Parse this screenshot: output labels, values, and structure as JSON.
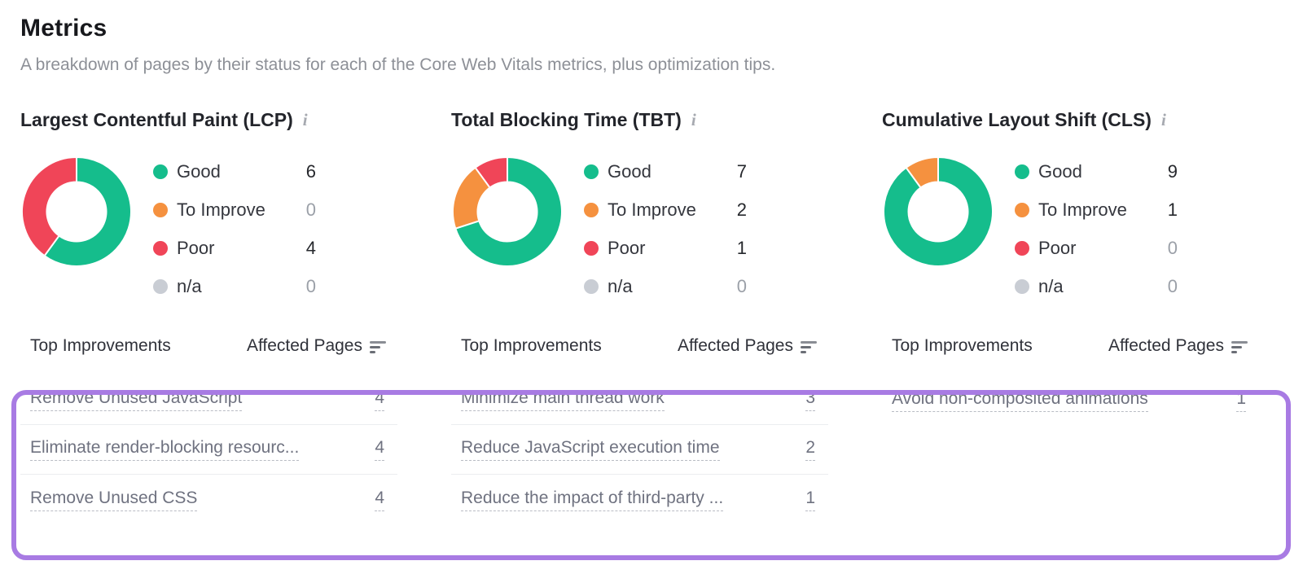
{
  "page": {
    "title": "Metrics",
    "subtitle": "A breakdown of pages by their status for each of the Core Web Vitals metrics, plus optimization tips."
  },
  "icons": {
    "info": "i"
  },
  "colors": {
    "good": "#15bd8c",
    "to_improve": "#f5913f",
    "poor": "#f04558",
    "na": "#c9cdd4",
    "highlight": "#a87be3"
  },
  "table_header": {
    "improvements": "Top Improvements",
    "affected_pages": "Affected Pages"
  },
  "metrics": [
    {
      "title": "Largest Contentful Paint (LCP)",
      "legend": [
        {
          "label": "Good",
          "value": "6",
          "color_key": "good"
        },
        {
          "label": "To Improve",
          "value": "0",
          "color_key": "to_improve"
        },
        {
          "label": "Poor",
          "value": "4",
          "color_key": "poor"
        },
        {
          "label": "n/a",
          "value": "0",
          "color_key": "na"
        }
      ],
      "improvements": [
        {
          "label": "Remove Unused JavaScript",
          "pages": "4"
        },
        {
          "label": "Eliminate render-blocking resourc...",
          "pages": "4"
        },
        {
          "label": "Remove Unused CSS",
          "pages": "4"
        }
      ]
    },
    {
      "title": "Total Blocking Time (TBT)",
      "legend": [
        {
          "label": "Good",
          "value": "7",
          "color_key": "good"
        },
        {
          "label": "To Improve",
          "value": "2",
          "color_key": "to_improve"
        },
        {
          "label": "Poor",
          "value": "1",
          "color_key": "poor"
        },
        {
          "label": "n/a",
          "value": "0",
          "color_key": "na"
        }
      ],
      "improvements": [
        {
          "label": "Minimize main thread work",
          "pages": "3"
        },
        {
          "label": "Reduce JavaScript execution time",
          "pages": "2"
        },
        {
          "label": "Reduce the impact of third-party ...",
          "pages": "1"
        }
      ]
    },
    {
      "title": "Cumulative Layout Shift (CLS)",
      "legend": [
        {
          "label": "Good",
          "value": "9",
          "color_key": "good"
        },
        {
          "label": "To Improve",
          "value": "1",
          "color_key": "to_improve"
        },
        {
          "label": "Poor",
          "value": "0",
          "color_key": "poor"
        },
        {
          "label": "n/a",
          "value": "0",
          "color_key": "na"
        }
      ],
      "improvements": [
        {
          "label": "Avoid non-composited animations",
          "pages": "1"
        }
      ]
    }
  ],
  "chart_data": [
    {
      "type": "pie",
      "variant": "donut",
      "title": "Largest Contentful Paint (LCP)",
      "categories": [
        "Good",
        "To Improve",
        "Poor",
        "n/a"
      ],
      "values": [
        6,
        0,
        4,
        0
      ],
      "colors_keys": [
        "good",
        "to_improve",
        "poor",
        "na"
      ],
      "hole": 0.54,
      "legend_position": "right"
    },
    {
      "type": "pie",
      "variant": "donut",
      "title": "Total Blocking Time (TBT)",
      "categories": [
        "Good",
        "To Improve",
        "Poor",
        "n/a"
      ],
      "values": [
        7,
        2,
        1,
        0
      ],
      "colors_keys": [
        "good",
        "to_improve",
        "poor",
        "na"
      ],
      "hole": 0.54,
      "legend_position": "right"
    },
    {
      "type": "pie",
      "variant": "donut",
      "title": "Cumulative Layout Shift (CLS)",
      "categories": [
        "Good",
        "To Improve",
        "Poor",
        "n/a"
      ],
      "values": [
        9,
        1,
        0,
        0
      ],
      "colors_keys": [
        "good",
        "to_improve",
        "poor",
        "na"
      ],
      "hole": 0.54,
      "legend_position": "right"
    }
  ]
}
